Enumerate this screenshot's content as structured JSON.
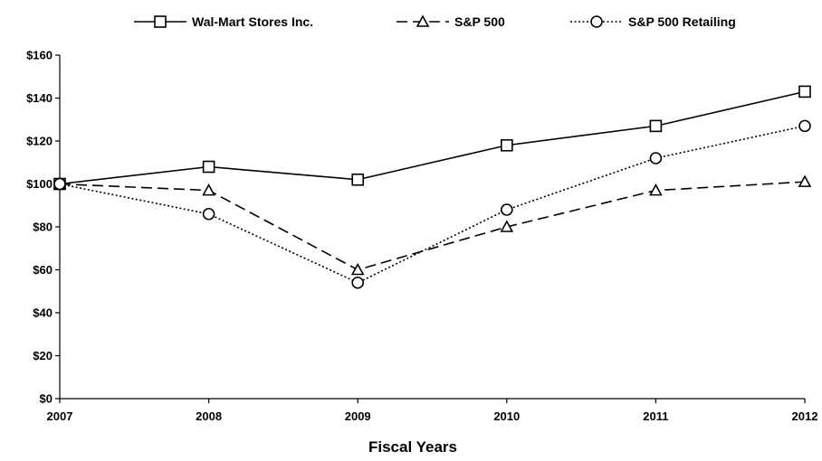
{
  "chart_data": {
    "type": "line",
    "title": "",
    "xlabel": "Fiscal Years",
    "ylabel": "",
    "categories": [
      "2007",
      "2008",
      "2009",
      "2010",
      "2011",
      "2012"
    ],
    "ylim": [
      0,
      160
    ],
    "yticks": [
      "$0",
      "$20",
      "$40",
      "$60",
      "$80",
      "$100",
      "$120",
      "$140",
      "$160"
    ],
    "grid": false,
    "legend_position": "top",
    "series": [
      {
        "name": "Wal-Mart Stores Inc.",
        "marker": "square",
        "dash": "solid",
        "values": [
          100,
          108,
          102,
          118,
          127,
          143
        ]
      },
      {
        "name": "S&P 500",
        "marker": "triangle",
        "dash": "dashed",
        "values": [
          100,
          97,
          60,
          80,
          97,
          101
        ]
      },
      {
        "name": "S&P 500 Retailing",
        "marker": "circle",
        "dash": "dotted",
        "values": [
          100,
          86,
          54,
          88,
          112,
          127
        ]
      }
    ],
    "colors": {
      "line": "#000000",
      "marker_fill": "#ffffff"
    }
  }
}
